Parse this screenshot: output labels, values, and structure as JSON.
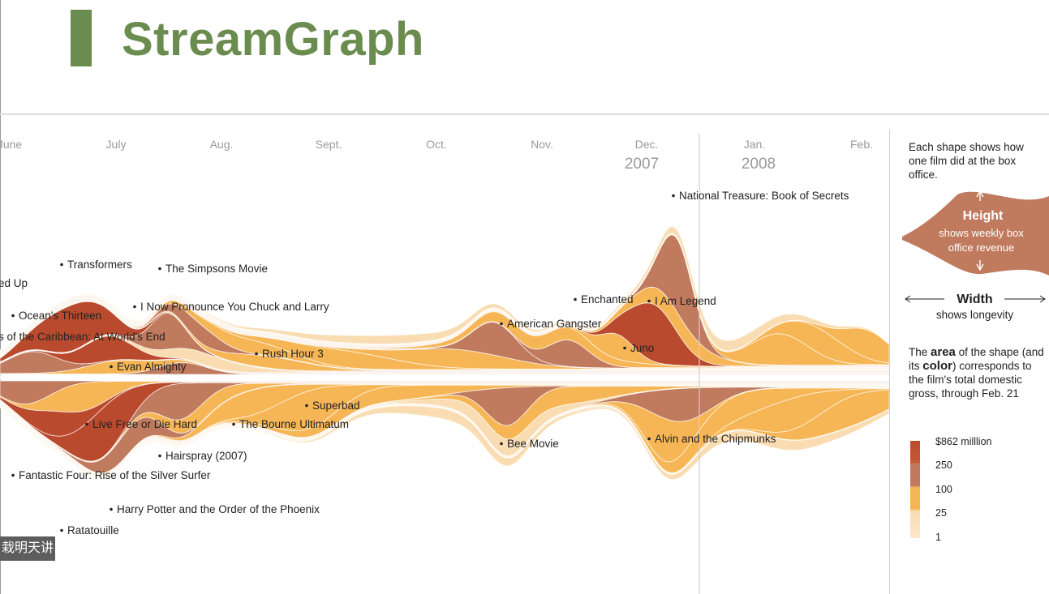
{
  "page": {
    "title": "StreamGraph",
    "watermark": "栽明天讲"
  },
  "colors": {
    "accent": "#6b8c4f",
    "scale": [
      "#f9dcb1",
      "#f6b655",
      "#c07a5e",
      "#ba4a2e"
    ]
  },
  "legend": {
    "intro": "Each shape shows how one film did at the box office.",
    "height_title": "Height",
    "height_desc": "shows weekly box office revenue",
    "width_title": "Width",
    "width_desc": "shows longevity",
    "area_text_1": "The ",
    "area_text_bold_1": "area",
    "area_text_2": " of the shape (and its ",
    "area_text_bold_2": "color",
    "area_text_3": ") corresponds to the film's total domestic gross, through Feb. 21",
    "scale_labels": [
      "$862 milllion",
      "250",
      "100",
      "25",
      "1"
    ]
  },
  "chart_data": {
    "type": "area",
    "subtype": "streamgraph",
    "x_ticks": [
      "June",
      "July",
      "Aug.",
      "Sept.",
      "Oct.",
      "Nov.",
      "Dec.",
      "Jan.",
      "Feb."
    ],
    "year_labels": [
      "2007",
      "2008"
    ],
    "films": [
      {
        "name": "Pirates of the Caribbean: At World's End",
        "label": "s of the Caribbean: At World's End"
      },
      {
        "name": "Ocean's Thirteen"
      },
      {
        "name": "Transformers"
      },
      {
        "name": "The Simpsons Movie"
      },
      {
        "name": "I Now Pronounce You Chuck and Larry"
      },
      {
        "name": "Rush Hour 3"
      },
      {
        "name": "Evan Almighty"
      },
      {
        "name": "Knocked Up",
        "label": "ed Up"
      },
      {
        "name": "Live Free or Die Hard"
      },
      {
        "name": "The Bourne Ultimatum"
      },
      {
        "name": "Superbad"
      },
      {
        "name": "Hairspray (2007)"
      },
      {
        "name": "Fantastic Four: Rise of the Silver Surfer"
      },
      {
        "name": "Harry Potter and the Order of the Phoenix"
      },
      {
        "name": "Ratatouille"
      },
      {
        "name": "American Gangster"
      },
      {
        "name": "Bee Movie"
      },
      {
        "name": "Enchanted"
      },
      {
        "name": "I Am Legend"
      },
      {
        "name": "Juno"
      },
      {
        "name": "National Treasure: Book of Secrets"
      },
      {
        "name": "Alvin and the Chipmunks"
      }
    ]
  }
}
